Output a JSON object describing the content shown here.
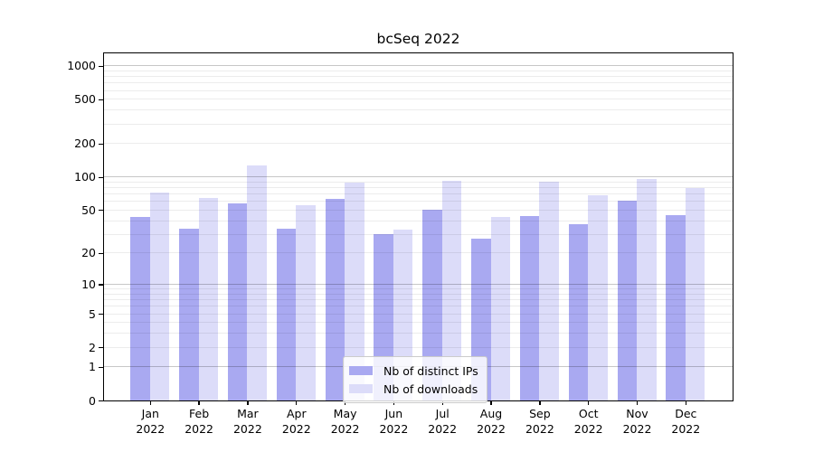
{
  "title": "bcSeq 2022",
  "chart_data": {
    "type": "bar",
    "title": "bcSeq 2022",
    "year": "2022",
    "categories": [
      "Jan",
      "Feb",
      "Mar",
      "Apr",
      "May",
      "Jun",
      "Jul",
      "Aug",
      "Sep",
      "Oct",
      "Nov",
      "Dec"
    ],
    "series": [
      {
        "name": "Nb of distinct IPs",
        "color": "#a9a9f1",
        "values": [
          43,
          34,
          58,
          34,
          63,
          30,
          50,
          27,
          44,
          37,
          61,
          45
        ]
      },
      {
        "name": "Nb of downloads",
        "color": "#dcdcf9",
        "values": [
          72,
          64,
          128,
          55,
          89,
          33,
          93,
          43,
          90,
          68,
          95,
          79
        ]
      }
    ],
    "yticks": [
      0,
      1,
      2,
      5,
      10,
      20,
      50,
      100,
      200,
      500,
      1000
    ],
    "minor_gridlines": [
      2,
      3,
      4,
      5,
      6,
      7,
      8,
      9,
      20,
      30,
      40,
      50,
      60,
      70,
      80,
      90,
      200,
      300,
      400,
      500,
      600,
      700,
      800,
      900
    ],
    "major_gridlines": [
      1,
      10,
      100,
      1000
    ],
    "yscale": "log10(1+x)",
    "ylim": [
      0,
      1000
    ],
    "xlabel": "",
    "ylabel": "",
    "grid": "on",
    "grid_above_bars": true,
    "legend_position": "lower-center",
    "colors": {
      "background": "#ffffff",
      "axis": "#000000",
      "grid_minor": "#ececec",
      "grid_major": "#c7c7c7"
    }
  }
}
